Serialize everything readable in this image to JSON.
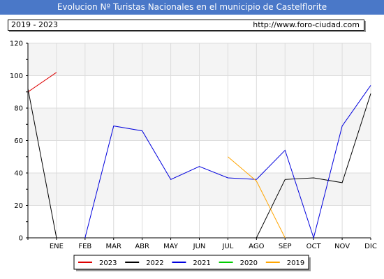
{
  "title": "Evolucion Nº Turistas Nacionales en el municipio de Castelflorite",
  "header": {
    "period": "2019 - 2023",
    "url": "http://www.foro-ciudad.com"
  },
  "chart_data": {
    "type": "line",
    "categories": [
      "ENE",
      "FEB",
      "MAR",
      "ABR",
      "MAY",
      "JUN",
      "JUL",
      "AGO",
      "SEP",
      "OCT",
      "NOV",
      "DIC"
    ],
    "x_start_label": "",
    "yticks": [
      0,
      20,
      40,
      60,
      80,
      100,
      120
    ],
    "ylim": [
      0,
      120
    ],
    "grid": true,
    "legend_position": "bottom",
    "series": [
      {
        "name": "2023",
        "color": "#dd0000",
        "points": [
          [
            0,
            90
          ],
          [
            1,
            102
          ]
        ]
      },
      {
        "name": "2022",
        "color": "#000000",
        "points": [
          [
            0,
            92
          ],
          [
            1,
            0
          ],
          [
            8,
            0
          ],
          [
            9,
            36
          ],
          [
            10,
            37
          ],
          [
            11,
            34
          ],
          [
            12,
            89
          ]
        ]
      },
      {
        "name": "2021",
        "color": "#0000dd",
        "points": [
          [
            2,
            0
          ],
          [
            3,
            69
          ],
          [
            4,
            66
          ],
          [
            5,
            36
          ],
          [
            6,
            44
          ],
          [
            7,
            37
          ],
          [
            8,
            36
          ],
          [
            9,
            54
          ],
          [
            10,
            0
          ],
          [
            11,
            69
          ],
          [
            12,
            94
          ]
        ]
      },
      {
        "name": "2020",
        "color": "#00cc00",
        "points": []
      },
      {
        "name": "2019",
        "color": "#ffa500",
        "points": [
          [
            7,
            50
          ],
          [
            8,
            35
          ],
          [
            9,
            0
          ]
        ]
      }
    ]
  }
}
